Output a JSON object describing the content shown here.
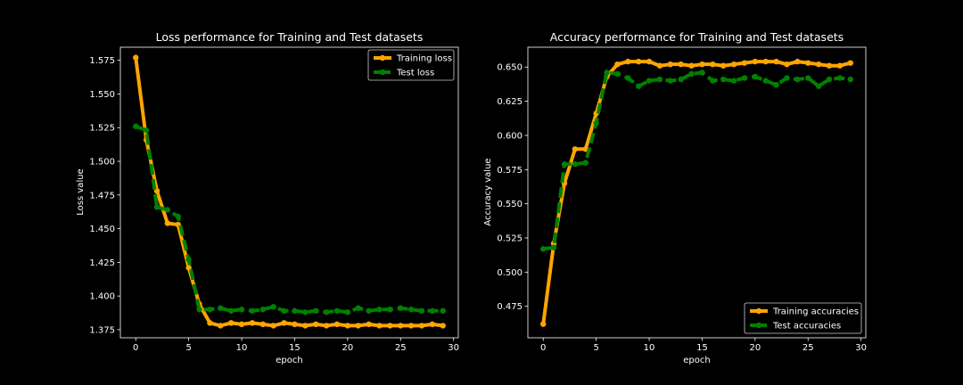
{
  "chart_data": [
    {
      "type": "line",
      "title": "Loss performance for Training and Test datasets",
      "xlabel": "epoch",
      "ylabel": "Loss value",
      "xlim": [
        -1.45,
        30.45
      ],
      "ylim": [
        1.369,
        1.5847
      ],
      "xticks": [
        0,
        5,
        10,
        15,
        20,
        25,
        30
      ],
      "xtick_labels": [
        "0",
        "5",
        "10",
        "15",
        "20",
        "25",
        "30"
      ],
      "yticks": [
        1.375,
        1.4,
        1.425,
        1.45,
        1.475,
        1.5,
        1.525,
        1.55,
        1.575
      ],
      "ytick_labels": [
        "1.375",
        "1.400",
        "1.425",
        "1.450",
        "1.475",
        "1.500",
        "1.525",
        "1.550",
        "1.575"
      ],
      "legend_position": "upper right",
      "grid": false,
      "x": [
        0,
        1,
        2,
        3,
        4,
        5,
        6,
        7,
        8,
        9,
        10,
        11,
        12,
        13,
        14,
        15,
        16,
        17,
        18,
        19,
        20,
        21,
        22,
        23,
        24,
        25,
        26,
        27,
        28,
        29
      ],
      "series": [
        {
          "name": "Training loss",
          "color": "#ffa500",
          "style": "solid",
          "values": [
            1.577,
            1.516,
            1.478,
            1.454,
            1.453,
            1.421,
            1.394,
            1.38,
            1.378,
            1.38,
            1.379,
            1.38,
            1.379,
            1.378,
            1.38,
            1.379,
            1.378,
            1.379,
            1.378,
            1.379,
            1.378,
            1.378,
            1.379,
            1.378,
            1.378,
            1.378,
            1.378,
            1.378,
            1.379,
            1.378
          ]
        },
        {
          "name": "Test loss",
          "color": "#008000",
          "style": "dashed",
          "values": [
            1.526,
            1.523,
            1.466,
            1.464,
            1.459,
            1.427,
            1.39,
            1.39,
            1.391,
            1.389,
            1.39,
            1.389,
            1.39,
            1.392,
            1.389,
            1.389,
            1.388,
            1.389,
            1.388,
            1.389,
            1.388,
            1.391,
            1.389,
            1.39,
            1.39,
            1.391,
            1.39,
            1.389,
            1.389,
            1.389
          ]
        }
      ]
    },
    {
      "type": "line",
      "title": "Accuracy performance for Training and Test datasets",
      "xlabel": "epoch",
      "ylabel": "Accuracy value",
      "xlim": [
        -1.45,
        30.45
      ],
      "ylim": [
        0.452,
        0.6645
      ],
      "xticks": [
        0,
        5,
        10,
        15,
        20,
        25,
        30
      ],
      "xtick_labels": [
        "0",
        "5",
        "10",
        "15",
        "20",
        "25",
        "30"
      ],
      "yticks": [
        0.475,
        0.5,
        0.525,
        0.55,
        0.575,
        0.6,
        0.625,
        0.65
      ],
      "ytick_labels": [
        "0.475",
        "0.500",
        "0.525",
        "0.550",
        "0.575",
        "0.600",
        "0.625",
        "0.650"
      ],
      "legend_position": "lower right",
      "grid": false,
      "x": [
        0,
        1,
        2,
        3,
        4,
        5,
        6,
        7,
        8,
        9,
        10,
        11,
        12,
        13,
        14,
        15,
        16,
        17,
        18,
        19,
        20,
        21,
        22,
        23,
        24,
        25,
        26,
        27,
        28,
        29
      ],
      "series": [
        {
          "name": "Training accuracies",
          "color": "#ffa500",
          "style": "solid",
          "values": [
            0.462,
            0.521,
            0.565,
            0.59,
            0.59,
            0.616,
            0.643,
            0.652,
            0.654,
            0.654,
            0.654,
            0.651,
            0.652,
            0.652,
            0.651,
            0.652,
            0.652,
            0.651,
            0.652,
            0.653,
            0.654,
            0.654,
            0.654,
            0.652,
            0.654,
            0.653,
            0.652,
            0.651,
            0.651,
            0.653
          ]
        },
        {
          "name": "Test accuracies",
          "color": "#008000",
          "style": "dashed",
          "values": [
            0.517,
            0.518,
            0.579,
            0.579,
            0.58,
            0.609,
            0.646,
            0.645,
            0.642,
            0.636,
            0.64,
            0.641,
            0.64,
            0.641,
            0.645,
            0.646,
            0.64,
            0.641,
            0.64,
            0.642,
            0.643,
            0.64,
            0.637,
            0.642,
            0.641,
            0.642,
            0.636,
            0.641,
            0.642,
            0.641
          ]
        }
      ]
    }
  ]
}
